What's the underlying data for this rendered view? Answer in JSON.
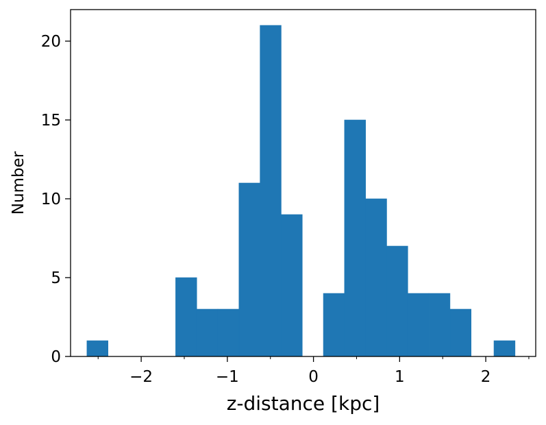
{
  "chart_data": {
    "type": "bar",
    "subtype": "histogram",
    "title": "",
    "xlabel": "z-distance [kpc]",
    "ylabel": "Number",
    "xlim": [
      -2.82,
      2.58
    ],
    "ylim": [
      0,
      22
    ],
    "bin_width": 0.245,
    "bins": [
      {
        "left": -2.63,
        "count": 1
      },
      {
        "left": -2.385,
        "count": 0
      },
      {
        "left": -2.14,
        "count": 0
      },
      {
        "left": -1.895,
        "count": 0
      },
      {
        "left": -1.65,
        "count": 0
      },
      {
        "left": -1.6,
        "count": 5
      },
      {
        "left": -1.355,
        "count": 3
      },
      {
        "left": -1.11,
        "count": 3
      },
      {
        "left": -0.865,
        "count": 11
      },
      {
        "left": -0.62,
        "count": 21
      },
      {
        "left": -0.375,
        "count": 9
      },
      {
        "left": -0.13,
        "count": 0
      },
      {
        "left": 0.115,
        "count": 4
      },
      {
        "left": 0.36,
        "count": 15
      },
      {
        "left": 0.605,
        "count": 10
      },
      {
        "left": 0.85,
        "count": 7
      },
      {
        "left": 1.095,
        "count": 4
      },
      {
        "left": 1.34,
        "count": 4
      },
      {
        "left": 1.585,
        "count": 3
      },
      {
        "left": 1.83,
        "count": 0
      },
      {
        "left": 2.075,
        "count": 0
      },
      {
        "left": 2.095,
        "count": 1
      }
    ],
    "x_ticks": [
      {
        "value": -2,
        "label": "−2"
      },
      {
        "value": -1,
        "label": "−1"
      },
      {
        "value": 0,
        "label": "0"
      },
      {
        "value": 1,
        "label": "1"
      },
      {
        "value": 2,
        "label": "2"
      }
    ],
    "x_minor_ticks": [
      -2.5,
      -1.5,
      -0.5,
      0.5,
      1.5,
      2.5
    ],
    "y_ticks": [
      {
        "value": 0,
        "label": "0"
      },
      {
        "value": 5,
        "label": "5"
      },
      {
        "value": 10,
        "label": "10"
      },
      {
        "value": 15,
        "label": "15"
      },
      {
        "value": 20,
        "label": "20"
      }
    ],
    "bar_color": "#1f77b4",
    "grid": false,
    "legend": "none"
  }
}
